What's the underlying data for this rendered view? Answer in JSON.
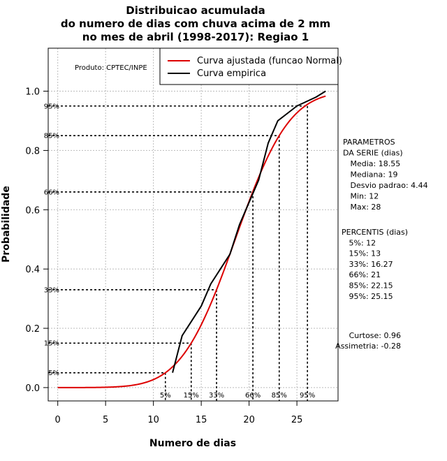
{
  "chart_data": {
    "type": "line",
    "title": [
      "Distribuicao acumulada",
      "do numero de dias com chuva acima de 2 mm",
      "no mes de abril (1998-2017): Regiao 1"
    ],
    "xlabel": "Numero de dias",
    "ylabel": "Probabilidade",
    "xlim": [
      -1,
      29.3
    ],
    "ylim": [
      -0.045,
      1.145
    ],
    "x_ticks": [
      0,
      5,
      10,
      15,
      20,
      25
    ],
    "y_ticks": [
      0.0,
      0.2,
      0.4,
      0.6,
      0.8,
      1.0
    ],
    "grid": true,
    "legend_position": "top-right",
    "source_label": "Produto: CPTEC/INPE",
    "series": [
      {
        "name": "Curva ajustada (funcao Normal)",
        "color": "#dd0000",
        "kind": "normal-cdf",
        "mean": 18.55,
        "sd": 4.44,
        "x_range": [
          0,
          28
        ]
      },
      {
        "name": "Curva empirica",
        "color": "#000000",
        "kind": "empirical",
        "x": [
          12,
          13,
          14,
          15,
          16,
          17,
          18,
          19,
          20,
          21,
          22,
          23,
          24,
          25,
          26,
          27,
          28
        ],
        "y": [
          0.05,
          0.175,
          0.225,
          0.275,
          0.35,
          0.4,
          0.45,
          0.55,
          0.625,
          0.7,
          0.825,
          0.9,
          0.925,
          0.95,
          0.965,
          0.98,
          1.0
        ]
      }
    ],
    "percentile_lines": [
      {
        "prob": 0.05,
        "x": 11.25,
        "y_label": "5%",
        "x_label": "5%"
      },
      {
        "prob": 0.15,
        "x": 13.95,
        "y_label": "15%",
        "x_label": "15%"
      },
      {
        "prob": 0.33,
        "x": 16.6,
        "y_label": "33%",
        "x_label": "33%"
      },
      {
        "prob": 0.66,
        "x": 20.4,
        "y_label": "66%",
        "x_label": "66%"
      },
      {
        "prob": 0.85,
        "x": 23.15,
        "y_label": "85%",
        "x_label": "85%"
      },
      {
        "prob": 0.95,
        "x": 26.1,
        "y_label": "95%",
        "x_label": "95%"
      }
    ],
    "parameters_block": [
      "PARAMETROS",
      "DA SERIE (dias)",
      "   Media: 18.55",
      "   Mediana: 19",
      "   Desvio padrao: 4.44",
      "   Min: 12",
      "   Max: 28"
    ],
    "percentis_block": [
      "PERCENTIS (dias)",
      "   5%: 12",
      "   15%: 13",
      "   33%: 16.27",
      "   66%: 21",
      "   85%: 22.15",
      "   95%: 25.15"
    ],
    "shape_block": [
      "Curtose: 0.96",
      "Assimetria: -0.28"
    ]
  }
}
